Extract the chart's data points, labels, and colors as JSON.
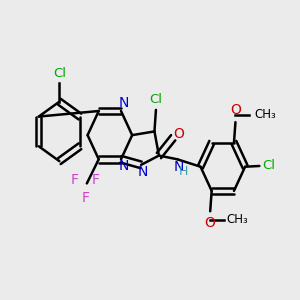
{
  "bg_color": "#ebebeb",
  "bond_color": "#000000",
  "bond_width": 1.8,
  "fig_width": 3.0,
  "fig_height": 3.0,
  "dpi": 100,
  "colors": {
    "C": "#000000",
    "N": "#0000cc",
    "O": "#cc0000",
    "F": "#cc44cc",
    "Cl": "#00aa00",
    "NH": "#4499aa"
  },
  "xlim": [
    0.0,
    1.0
  ],
  "ylim": [
    0.15,
    0.95
  ]
}
